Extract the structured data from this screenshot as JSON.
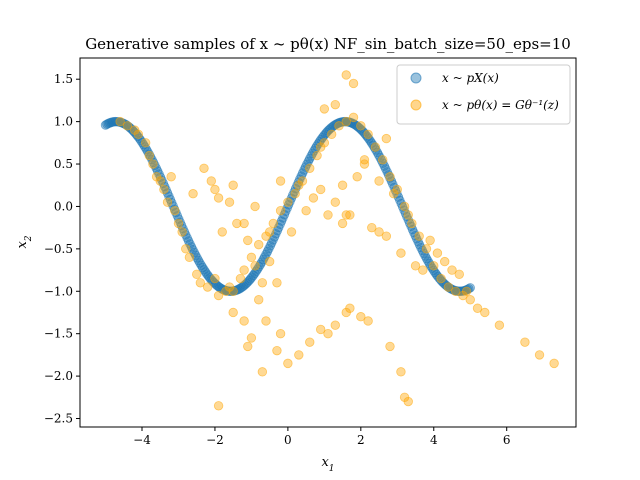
{
  "chart_data": {
    "type": "scatter",
    "title": "Generative samples of  x ~ pθ(x) NF_sin_batch_size=50_eps=10",
    "xlabel": "x1",
    "ylabel": "x2",
    "xlim": [
      -5.7,
      7.9
    ],
    "ylim": [
      -2.6,
      1.75
    ],
    "xticks": [
      -4,
      -2,
      0,
      2,
      4,
      6
    ],
    "yticks": [
      -2.5,
      -2.0,
      -1.5,
      -1.0,
      -0.5,
      0.0,
      0.5,
      1.0,
      1.5
    ],
    "xtick_labels": [
      "−4",
      "−2",
      "0",
      "2",
      "4",
      "6"
    ],
    "ytick_labels": [
      "−2.5",
      "−2.0",
      "−1.5",
      "−1.0",
      "−0.5",
      "0.0",
      "0.5",
      "1.0",
      "1.5"
    ],
    "legend_position": "upper right",
    "series": [
      {
        "name": "x ~ pX(x)",
        "color": "#1f77b4",
        "x_range": [
          -5.0,
          5.0
        ],
        "function": "sin",
        "n_points": 260
      },
      {
        "name": "x ~ pθ(x) = Gθ⁻¹(z)",
        "color": "#ffa500",
        "points": [
          [
            -4.6,
            1.0
          ],
          [
            -4.4,
            0.95
          ],
          [
            -4.2,
            0.9
          ],
          [
            -4.1,
            0.85
          ],
          [
            -3.9,
            0.75
          ],
          [
            -3.8,
            0.6
          ],
          [
            -3.7,
            0.5
          ],
          [
            -3.6,
            0.35
          ],
          [
            -3.5,
            0.3
          ],
          [
            -3.4,
            0.2
          ],
          [
            -3.3,
            0.05
          ],
          [
            -3.1,
            -0.05
          ],
          [
            -3.0,
            -0.2
          ],
          [
            -2.9,
            -0.3
          ],
          [
            -2.8,
            -0.5
          ],
          [
            -2.7,
            -0.6
          ],
          [
            -2.5,
            -0.8
          ],
          [
            -2.4,
            -0.9
          ],
          [
            -2.2,
            -0.95
          ],
          [
            -2.0,
            -0.85
          ],
          [
            -1.9,
            -1.05
          ],
          [
            -1.7,
            -1.0
          ],
          [
            -1.6,
            -0.95
          ],
          [
            -1.5,
            -1.0
          ],
          [
            -1.3,
            -0.85
          ],
          [
            -1.2,
            -0.75
          ],
          [
            -1.0,
            -0.6
          ],
          [
            -0.8,
            -0.45
          ],
          [
            -0.6,
            -0.35
          ],
          [
            -0.4,
            -0.2
          ],
          [
            -0.2,
            -0.05
          ],
          [
            0.0,
            0.05
          ],
          [
            0.2,
            0.15
          ],
          [
            0.4,
            0.3
          ],
          [
            0.6,
            0.45
          ],
          [
            0.8,
            0.6
          ],
          [
            1.0,
            0.75
          ],
          [
            1.2,
            0.85
          ],
          [
            1.4,
            0.95
          ],
          [
            1.6,
            1.0
          ],
          [
            1.8,
            1.05
          ],
          [
            2.0,
            0.95
          ],
          [
            2.2,
            0.85
          ],
          [
            2.4,
            0.7
          ],
          [
            2.6,
            0.55
          ],
          [
            2.8,
            0.35
          ],
          [
            3.0,
            0.2
          ],
          [
            3.2,
            0.0
          ],
          [
            3.4,
            -0.2
          ],
          [
            3.6,
            -0.35
          ],
          [
            3.8,
            -0.5
          ],
          [
            4.0,
            -0.7
          ],
          [
            4.2,
            -0.85
          ],
          [
            4.4,
            -0.95
          ],
          [
            4.6,
            -1.0
          ],
          [
            4.8,
            -1.05
          ],
          [
            5.0,
            -1.1
          ],
          [
            -2.3,
            0.45
          ],
          [
            -2.1,
            0.3
          ],
          [
            -1.9,
            0.1
          ],
          [
            -1.6,
            0.05
          ],
          [
            -1.4,
            -0.2
          ],
          [
            -1.1,
            -0.4
          ],
          [
            -0.9,
            -0.7
          ],
          [
            -0.7,
            -0.9
          ],
          [
            -0.5,
            -0.65
          ],
          [
            -0.3,
            -0.9
          ],
          [
            -2.6,
            0.15
          ],
          [
            -3.2,
            0.35
          ],
          [
            -2.0,
            0.2
          ],
          [
            -1.8,
            -0.3
          ],
          [
            -1.2,
            -0.2
          ],
          [
            -1.5,
            0.25
          ],
          [
            -0.9,
            0.0
          ],
          [
            -0.5,
            -0.3
          ],
          [
            -0.2,
            0.3
          ],
          [
            0.3,
            0.25
          ],
          [
            0.5,
            -0.05
          ],
          [
            0.1,
            -0.3
          ],
          [
            0.7,
            0.1
          ],
          [
            0.9,
            0.2
          ],
          [
            1.1,
            -0.1
          ],
          [
            1.3,
            0.05
          ],
          [
            1.5,
            -0.2
          ],
          [
            1.7,
            -0.1
          ],
          [
            1.9,
            0.35
          ],
          [
            2.1,
            0.5
          ],
          [
            2.3,
            -0.25
          ],
          [
            2.5,
            -0.3
          ],
          [
            2.7,
            -0.35
          ],
          [
            2.9,
            0.15
          ],
          [
            3.1,
            -0.55
          ],
          [
            3.3,
            -0.1
          ],
          [
            3.5,
            -0.7
          ],
          [
            3.7,
            -0.75
          ],
          [
            3.9,
            -0.4
          ],
          [
            4.1,
            -0.55
          ],
          [
            4.3,
            -0.65
          ],
          [
            4.5,
            -0.75
          ],
          [
            4.7,
            -0.8
          ],
          [
            4.9,
            -1.0
          ],
          [
            5.2,
            -1.2
          ],
          [
            5.4,
            -1.25
          ],
          [
            5.8,
            -1.4
          ],
          [
            -1.5,
            -1.25
          ],
          [
            -1.2,
            -1.35
          ],
          [
            -1.0,
            -1.55
          ],
          [
            -0.8,
            -1.1
          ],
          [
            -0.6,
            -1.35
          ],
          [
            -0.2,
            -1.5
          ],
          [
            -0.3,
            -1.7
          ],
          [
            0.3,
            -1.75
          ],
          [
            0.6,
            -1.6
          ],
          [
            0.9,
            -1.45
          ],
          [
            1.1,
            -1.5
          ],
          [
            1.3,
            -1.4
          ],
          [
            1.6,
            -1.25
          ],
          [
            1.7,
            -1.2
          ],
          [
            2.0,
            -1.3
          ],
          [
            2.2,
            -1.35
          ],
          [
            2.8,
            -1.65
          ],
          [
            3.1,
            -1.95
          ],
          [
            3.2,
            -2.25
          ],
          [
            3.3,
            -2.3
          ],
          [
            -1.9,
            -2.35
          ],
          [
            -0.7,
            -1.95
          ],
          [
            -1.1,
            -1.65
          ],
          [
            0.0,
            -1.85
          ],
          [
            6.5,
            -1.6
          ],
          [
            6.9,
            -1.75
          ],
          [
            7.3,
            -1.85
          ],
          [
            1.8,
            1.45
          ],
          [
            1.6,
            1.55
          ],
          [
            1.3,
            1.2
          ],
          [
            1.0,
            1.15
          ],
          [
            0.9,
            0.7
          ],
          [
            2.5,
            0.3
          ],
          [
            1.5,
            0.25
          ],
          [
            1.6,
            -0.1
          ],
          [
            2.1,
            0.55
          ],
          [
            2.7,
            0.8
          ]
        ]
      }
    ]
  }
}
